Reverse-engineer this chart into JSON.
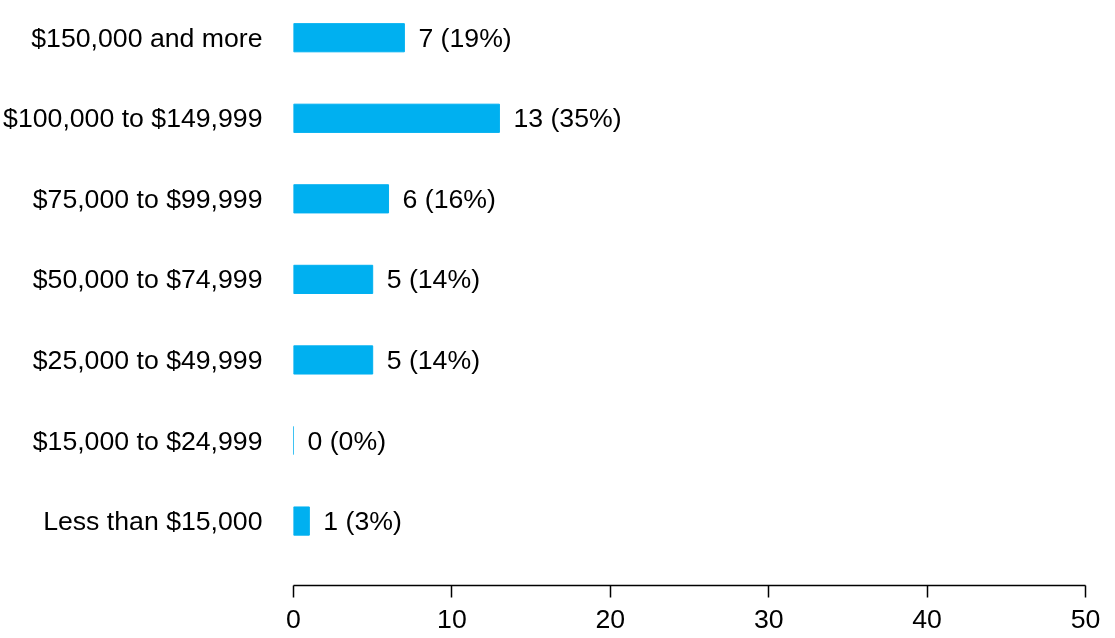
{
  "chart_data": {
    "type": "bar",
    "orientation": "horizontal",
    "categories": [
      "$150,000 and more",
      "$100,000 to $149,999",
      "$75,000 to $99,999",
      "$50,000 to $74,999",
      "$25,000 to $49,999",
      "$15,000 to $24,999",
      "Less than $15,000"
    ],
    "values": [
      7,
      13,
      6,
      5,
      5,
      0,
      1
    ],
    "value_labels": [
      "7 (19%)",
      "13 (35%)",
      "6 (16%)",
      "5 (14%)",
      "5 (14%)",
      "0 (0%)",
      "1 (3%)"
    ],
    "color": "#00b0f0",
    "xlim": [
      0,
      50
    ],
    "xticks": [
      0,
      10,
      20,
      30,
      40,
      50
    ],
    "grid": false
  }
}
